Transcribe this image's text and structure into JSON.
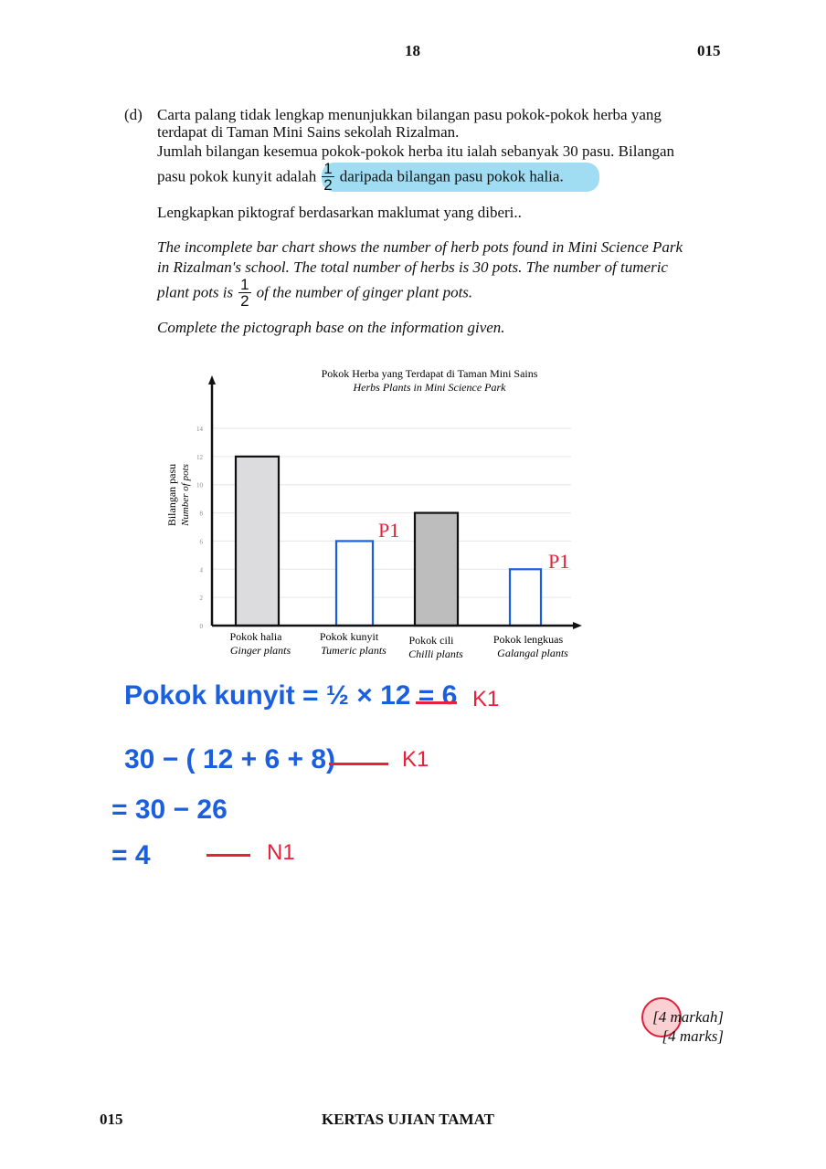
{
  "header": {
    "page_number": "18",
    "code": "015"
  },
  "question": {
    "label": "(d)",
    "malay_line1": "Carta palang tidak lengkap menunjukkan bilangan pasu pokok-pokok herba yang",
    "malay_line2": "terdapat di Taman Mini Sains sekolah Rizalman.",
    "malay_line3": "Jumlah bilangan kesemua pokok-pokok herba itu ialah sebanyak 30 pasu. Bilangan",
    "malay_line4a": "pasu pokok kunyit adalah",
    "malay_line4b": "daripada bilangan pasu pokok halia.",
    "malay_line5": "Lengkapkan piktograf berdasarkan maklumat yang diberi..",
    "english_line1": "The incomplete bar chart shows the number of herb pots found in Mini Science Park",
    "english_line2": "in Rizalman's school. The total number of herbs is 30 pots. The number of tumeric",
    "english_line3a": "plant pots is",
    "english_line3b": "of the number of ginger plant pots.",
    "english_line4": "Complete the pictograph base on the information given.",
    "fraction": {
      "numerator": "1",
      "denominator": "2"
    },
    "highlight_color": "#8fd6f0"
  },
  "chart_data": {
    "type": "bar",
    "title": "Pokok Herba yang Terdapat di Taman Mini Sains",
    "subtitle": "Herbs Plants in Mini Science Park",
    "ylabel": "Bilangan pasu",
    "ylabel_en": "Number of pots",
    "ylim": [
      0,
      14
    ],
    "yticks": [
      "0",
      "2",
      "4",
      "6",
      "8",
      "10",
      "12",
      "14"
    ],
    "grid": true,
    "categories": [
      {
        "malay": "Pokok halia",
        "english": "Ginger plants"
      },
      {
        "malay": "Pokok kunyit",
        "english": "Tumeric plants"
      },
      {
        "malay": "Pokok cili",
        "english": "Chilli plants"
      },
      {
        "malay": "Pokok lengkuas",
        "english": "Galangal plants"
      }
    ],
    "values": [
      12,
      6,
      8,
      4
    ],
    "bar_styles": [
      {
        "fill": "#dcdbde",
        "stroke": "#111111"
      },
      {
        "fill": "#ffffff",
        "stroke": "#1a5fe0"
      },
      {
        "fill": "#bdbdbd",
        "stroke": "#111111"
      },
      {
        "fill": "#ffffff",
        "stroke": "#1a5fe0"
      }
    ],
    "annotations": [
      "P1",
      "P1"
    ]
  },
  "working": {
    "line1": "Pokok kunyit = ½ × 12 = 6",
    "mark1": "K1",
    "line2": "30 − ( 12 + 6 + 8)",
    "mark2": "K1",
    "line3": "= 30 − 26",
    "line4": "= 4",
    "mark4": "N1",
    "ink_blue": "#1a5fe0",
    "ink_red": "#e8203a"
  },
  "marks": {
    "malay": "[4 markah]",
    "english": "[4 marks]"
  },
  "footer": {
    "code": "015",
    "title": "KERTAS UJIAN TAMAT"
  }
}
